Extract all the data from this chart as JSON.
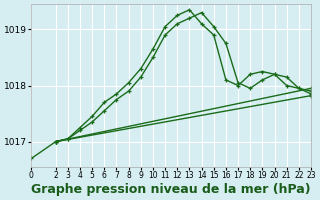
{
  "bg_color": "#d6eef2",
  "grid_color": "#ffffff",
  "line_color": "#1a6b1a",
  "xlabel": "Graphe pression niveau de la mer (hPa)",
  "xlabel_fontsize": 9,
  "ylabel_ticks": [
    1017,
    1018,
    1019
  ],
  "xlim": [
    0,
    23
  ],
  "ylim": [
    1016.55,
    1019.45
  ],
  "xticks": [
    0,
    2,
    3,
    4,
    5,
    6,
    7,
    8,
    9,
    10,
    11,
    12,
    13,
    14,
    15,
    16,
    17,
    18,
    19,
    20,
    21,
    22,
    23
  ],
  "series1_x": [
    0,
    2,
    3,
    4,
    5,
    6,
    7,
    8,
    9,
    10,
    11,
    12,
    13,
    14,
    15,
    16,
    17,
    18,
    19,
    20,
    21,
    22,
    23
  ],
  "series1_y": [
    1016.7,
    1017.0,
    1017.05,
    1017.25,
    1017.45,
    1017.7,
    1017.85,
    1018.05,
    1018.3,
    1018.65,
    1019.05,
    1019.25,
    1019.35,
    1019.1,
    1018.9,
    1018.1,
    1018.0,
    1018.2,
    1018.25,
    1018.2,
    1018.0,
    1017.95,
    1017.9
  ],
  "series2_x": [
    2,
    3,
    4,
    5,
    6,
    7,
    8,
    9,
    10,
    11,
    12,
    13,
    14,
    15,
    16,
    17,
    18,
    19,
    20,
    21,
    22,
    23
  ],
  "series2_y": [
    1017.0,
    1017.05,
    1017.2,
    1017.35,
    1017.55,
    1017.75,
    1017.9,
    1018.15,
    1018.5,
    1018.9,
    1019.1,
    1019.2,
    1019.3,
    1019.05,
    1018.75,
    1018.05,
    1017.95,
    1018.1,
    1018.2,
    1018.15,
    1017.95,
    1017.85
  ],
  "series3_x": [
    2,
    23
  ],
  "series3_y": [
    1017.0,
    1017.95
  ],
  "series4_x": [
    2,
    23
  ],
  "series4_y": [
    1017.0,
    1017.82
  ]
}
